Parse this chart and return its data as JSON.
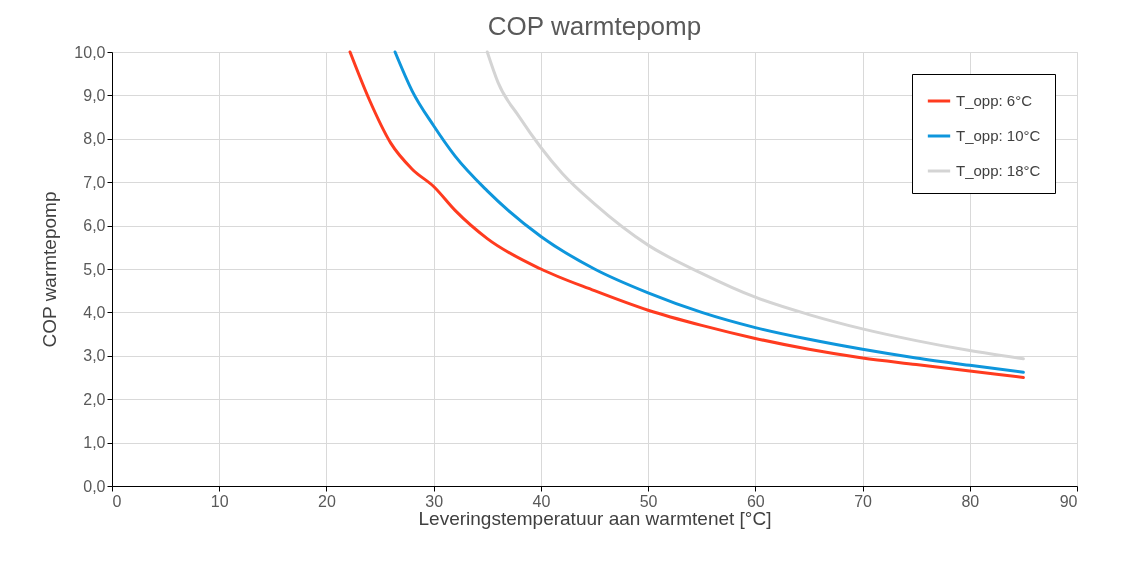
{
  "chart_data": {
    "type": "line",
    "title": "COP warmtepomp",
    "xlabel": "Leveringstemperatuur aan warmtenet [°C]",
    "ylabel": "COP warmtepomp",
    "xlim": [
      0,
      90
    ],
    "xticks": [
      0,
      10,
      20,
      30,
      40,
      50,
      60,
      70,
      80,
      90
    ],
    "ylim": [
      0,
      10
    ],
    "yticks": [
      {
        "value": 0,
        "label": "0,0"
      },
      {
        "value": 1,
        "label": "1,0"
      },
      {
        "value": 2,
        "label": "2,0"
      },
      {
        "value": 3,
        "label": "3,0"
      },
      {
        "value": 4,
        "label": "4,0"
      },
      {
        "value": 5,
        "label": "5,0"
      },
      {
        "value": 6,
        "label": "6,0"
      },
      {
        "value": 7,
        "label": "7,0"
      },
      {
        "value": 8,
        "label": "8,0"
      },
      {
        "value": 9,
        "label": "9,0"
      },
      {
        "value": 10,
        "label": "10,0"
      }
    ],
    "grid": true,
    "legend": "top right",
    "marker": "none",
    "line_style": "solid",
    "series": [
      {
        "name": "T_opp: 6°C",
        "color": "#ff3b1f",
        "x": [
          22.2,
          24,
          26,
          28,
          30,
          32,
          35,
          40,
          45,
          50,
          55,
          60,
          65,
          70,
          75,
          80,
          85
        ],
        "values": [
          10,
          8.9,
          7.9,
          7.3,
          6.9,
          6.35,
          5.7,
          5.0,
          4.5,
          4.05,
          3.7,
          3.4,
          3.15,
          2.95,
          2.8,
          2.65,
          2.5
        ]
      },
      {
        "name": "T_opp: 10°C",
        "color": "#0e96dc",
        "x": [
          26.4,
          28,
          30,
          32,
          35,
          40,
          45,
          50,
          55,
          60,
          65,
          70,
          75,
          80,
          85
        ],
        "values": [
          10,
          9.1,
          8.3,
          7.6,
          6.8,
          5.75,
          5.0,
          4.45,
          4.0,
          3.65,
          3.38,
          3.15,
          2.95,
          2.78,
          2.62
        ]
      },
      {
        "name": "T_opp: 18°C",
        "color": "#d4d4d4",
        "x": [
          35,
          36,
          38,
          40,
          42,
          45,
          50,
          55,
          60,
          65,
          70,
          75,
          80,
          85
        ],
        "values": [
          10,
          9.3,
          8.5,
          7.8,
          7.2,
          6.5,
          5.55,
          4.9,
          4.35,
          3.95,
          3.62,
          3.35,
          3.12,
          2.93
        ]
      }
    ]
  }
}
